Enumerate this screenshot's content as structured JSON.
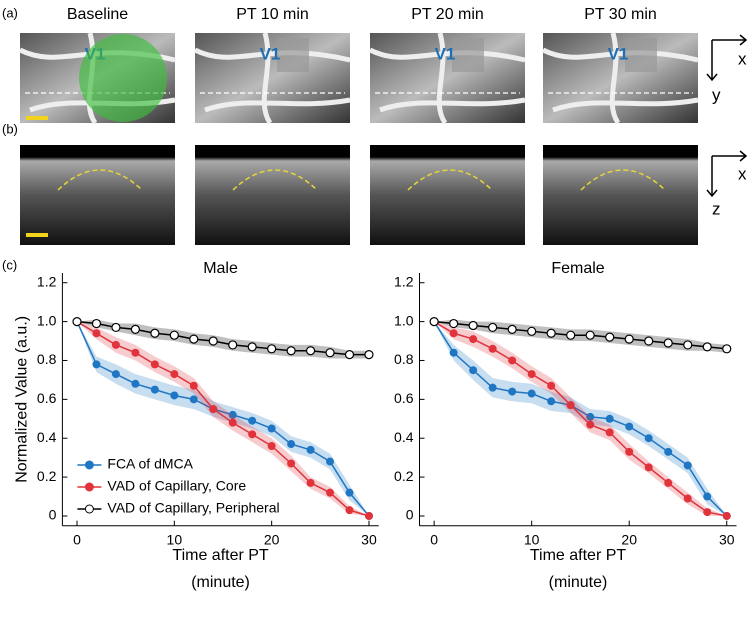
{
  "panel_labels": [
    "(a)",
    "(b)",
    "(c)"
  ],
  "image_titles": [
    "Baseline",
    "PT  10 min",
    "PT  20 min",
    "PT  30 min"
  ],
  "region_label": "V1",
  "axes_a": [
    "x",
    "y"
  ],
  "axes_b": [
    "x",
    "z"
  ],
  "chart_data": [
    {
      "type": "line",
      "title": "Male",
      "xlabel": [
        "Time after PT",
        "(minute)"
      ],
      "ylabel": "Normalized  Value (a.u.)",
      "x": [
        0,
        2,
        4,
        6,
        8,
        10,
        12,
        14,
        16,
        18,
        20,
        22,
        24,
        26,
        28,
        30
      ],
      "xlim": [
        -1.5,
        31
      ],
      "xticks": [
        0,
        10,
        20,
        30
      ],
      "ylim": [
        -0.05,
        1.25
      ],
      "yticks": [
        0,
        0.2,
        0.4,
        0.6,
        0.8,
        {
          "value": 1,
          "label": "1.0"
        },
        1.2
      ],
      "legend": "lower left",
      "series": [
        {
          "name": "FCA of dMCA",
          "color": "#1f77c4",
          "marker": "filled",
          "values": [
            1.0,
            0.78,
            0.73,
            0.68,
            0.65,
            0.62,
            0.6,
            0.55,
            0.52,
            0.49,
            0.45,
            0.37,
            0.34,
            0.28,
            0.12,
            0.0
          ],
          "errors": [
            0,
            0.04,
            0.05,
            0.05,
            0.05,
            0.05,
            0.05,
            0.04,
            0.04,
            0.04,
            0.04,
            0.04,
            0.04,
            0.04,
            0.04,
            0
          ]
        },
        {
          "name": "VAD of Capillary, Core",
          "color": "#e0333c",
          "marker": "filled",
          "values": [
            1.0,
            0.94,
            0.88,
            0.84,
            0.78,
            0.73,
            0.67,
            0.55,
            0.48,
            0.42,
            0.36,
            0.27,
            0.17,
            0.12,
            0.03,
            0.0
          ],
          "errors": [
            0,
            0.03,
            0.04,
            0.04,
            0.04,
            0.04,
            0.04,
            0.04,
            0.04,
            0.04,
            0.04,
            0.04,
            0.03,
            0.03,
            0.02,
            0
          ]
        },
        {
          "name": "VAD of Capillary, Peripheral",
          "color": "#000000",
          "marker": "open",
          "values": [
            1.0,
            0.99,
            0.97,
            0.96,
            0.94,
            0.93,
            0.91,
            0.9,
            0.88,
            0.87,
            0.86,
            0.85,
            0.85,
            0.84,
            0.83,
            0.83
          ],
          "errors": [
            0,
            0.02,
            0.02,
            0.03,
            0.03,
            0.03,
            0.03,
            0.03,
            0.03,
            0.03,
            0.03,
            0.03,
            0.03,
            0.03,
            0.02,
            0.02
          ]
        }
      ]
    },
    {
      "type": "line",
      "title": "Female",
      "xlabel": [
        "Time after PT",
        "(minute)"
      ],
      "x": [
        0,
        2,
        4,
        6,
        8,
        10,
        12,
        14,
        16,
        18,
        20,
        22,
        24,
        26,
        28,
        30
      ],
      "xlim": [
        -1.5,
        31
      ],
      "xticks": [
        0,
        10,
        20,
        30
      ],
      "ylim": [
        -0.05,
        1.25
      ],
      "yticks": [
        0,
        0.2,
        0.4,
        0.6,
        0.8,
        {
          "value": 1,
          "label": "1.0"
        },
        1.2
      ],
      "series": [
        {
          "color": "#1f77c4",
          "marker": "filled",
          "values": [
            1.0,
            0.84,
            0.75,
            0.66,
            0.64,
            0.63,
            0.59,
            0.57,
            0.51,
            0.5,
            0.46,
            0.4,
            0.33,
            0.26,
            0.1,
            0.0
          ],
          "errors": [
            0,
            0.04,
            0.05,
            0.05,
            0.05,
            0.05,
            0.05,
            0.04,
            0.04,
            0.04,
            0.04,
            0.04,
            0.04,
            0.04,
            0.04,
            0
          ]
        },
        {
          "color": "#e0333c",
          "marker": "filled",
          "values": [
            1.0,
            0.94,
            0.91,
            0.86,
            0.8,
            0.73,
            0.67,
            0.57,
            0.47,
            0.43,
            0.33,
            0.25,
            0.17,
            0.09,
            0.02,
            0.0
          ],
          "errors": [
            0,
            0.03,
            0.04,
            0.04,
            0.04,
            0.04,
            0.04,
            0.04,
            0.04,
            0.04,
            0.04,
            0.03,
            0.03,
            0.03,
            0.02,
            0
          ]
        },
        {
          "color": "#000000",
          "marker": "open",
          "values": [
            1.0,
            0.99,
            0.98,
            0.97,
            0.96,
            0.95,
            0.94,
            0.93,
            0.93,
            0.92,
            0.91,
            0.9,
            0.89,
            0.88,
            0.87,
            0.86
          ],
          "errors": [
            0,
            0.02,
            0.02,
            0.03,
            0.03,
            0.03,
            0.03,
            0.03,
            0.03,
            0.03,
            0.03,
            0.03,
            0.03,
            0.03,
            0.02,
            0.02
          ]
        }
      ]
    }
  ]
}
